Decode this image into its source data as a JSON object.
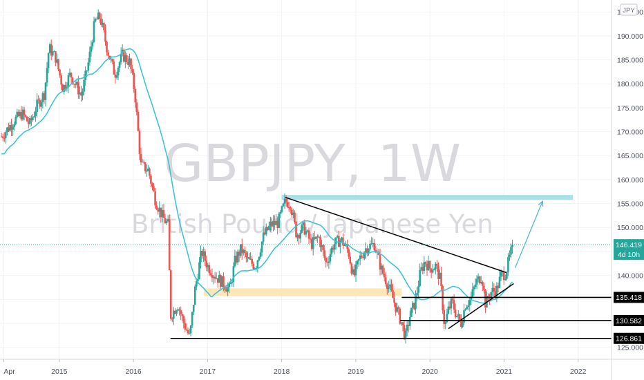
{
  "chart_data": {
    "type": "candlestick",
    "symbol": "GBPJPY",
    "interval": "1W",
    "watermark_title": "GBPJPY, 1W",
    "watermark_subtitle": "British Pound / Japanese Yen",
    "currency": "JPY",
    "ylim": [
      122.5,
      197.5
    ],
    "y_ticks": [
      125,
      130,
      135,
      140,
      145,
      150,
      155,
      160,
      165,
      170,
      175,
      180,
      185,
      190,
      195
    ],
    "x_tick_labels": [
      "Apr",
      "2015",
      "2016",
      "2017",
      "2018",
      "2019",
      "2020",
      "2021",
      "2022"
    ],
    "x_tick_years": [
      2014.25,
      2015.0,
      2016.0,
      2017.0,
      2018.0,
      2019.0,
      2020.0,
      2021.0,
      2022.0
    ],
    "x_range": [
      2014.2,
      2022.45
    ],
    "price_path": [
      [
        2014.22,
        169.0
      ],
      [
        2014.4,
        172.5
      ],
      [
        2014.5,
        173.8
      ],
      [
        2014.6,
        171.5
      ],
      [
        2014.7,
        175.5
      ],
      [
        2014.8,
        178.0
      ],
      [
        2014.86,
        187.5
      ],
      [
        2014.95,
        185.5
      ],
      [
        2015.05,
        179.0
      ],
      [
        2015.15,
        182.0
      ],
      [
        2015.3,
        177.5
      ],
      [
        2015.4,
        185.0
      ],
      [
        2015.48,
        193.0
      ],
      [
        2015.55,
        194.0
      ],
      [
        2015.65,
        187.0
      ],
      [
        2015.75,
        182.0
      ],
      [
        2015.85,
        186.0
      ],
      [
        2015.95,
        184.5
      ],
      [
        2016.02,
        178.0
      ],
      [
        2016.1,
        163.0
      ],
      [
        2016.2,
        162.0
      ],
      [
        2016.3,
        155.5
      ],
      [
        2016.4,
        152.0
      ],
      [
        2016.47,
        150.5
      ],
      [
        2016.5,
        131.5
      ],
      [
        2016.6,
        134.0
      ],
      [
        2016.68,
        130.0
      ],
      [
        2016.76,
        127.0
      ],
      [
        2016.83,
        137.0
      ],
      [
        2016.92,
        145.0
      ],
      [
        2017.0,
        142.0
      ],
      [
        2017.1,
        140.0
      ],
      [
        2017.2,
        138.5
      ],
      [
        2017.3,
        137.0
      ],
      [
        2017.37,
        143.0
      ],
      [
        2017.45,
        145.5
      ],
      [
        2017.55,
        143.0
      ],
      [
        2017.65,
        142.0
      ],
      [
        2017.75,
        148.0
      ],
      [
        2017.85,
        150.5
      ],
      [
        2017.95,
        151.0
      ],
      [
        2018.05,
        155.5
      ],
      [
        2018.12,
        155.0
      ],
      [
        2018.2,
        148.5
      ],
      [
        2018.3,
        150.0
      ],
      [
        2018.4,
        146.5
      ],
      [
        2018.5,
        148.0
      ],
      [
        2018.6,
        142.5
      ],
      [
        2018.7,
        146.5
      ],
      [
        2018.8,
        147.5
      ],
      [
        2018.9,
        145.0
      ],
      [
        2018.97,
        139.5
      ],
      [
        2019.05,
        143.5
      ],
      [
        2019.15,
        146.0
      ],
      [
        2019.25,
        146.5
      ],
      [
        2019.35,
        141.0
      ],
      [
        2019.45,
        137.5
      ],
      [
        2019.55,
        133.0
      ],
      [
        2019.62,
        130.0
      ],
      [
        2019.67,
        127.0
      ],
      [
        2019.73,
        131.5
      ],
      [
        2019.8,
        134.5
      ],
      [
        2019.87,
        140.5
      ],
      [
        2019.93,
        143.0
      ],
      [
        2020.0,
        141.5
      ],
      [
        2020.08,
        142.0
      ],
      [
        2020.14,
        139.0
      ],
      [
        2020.2,
        129.0
      ],
      [
        2020.24,
        132.5
      ],
      [
        2020.3,
        134.5
      ],
      [
        2020.35,
        132.0
      ],
      [
        2020.42,
        130.0
      ],
      [
        2020.48,
        134.0
      ],
      [
        2020.55,
        135.0
      ],
      [
        2020.62,
        138.5
      ],
      [
        2020.7,
        140.0
      ],
      [
        2020.75,
        134.0
      ],
      [
        2020.82,
        136.5
      ],
      [
        2020.9,
        137.0
      ],
      [
        2020.96,
        140.0
      ],
      [
        2021.02,
        140.5
      ],
      [
        2021.08,
        144.0
      ],
      [
        2021.12,
        146.42
      ]
    ],
    "candle_step": 0.0192,
    "candle_seed": 7,
    "up_color": "#26a69a",
    "down_color": "#ef5350",
    "moving_average_color": "#3ec3d6",
    "ma_period": 30,
    "zones": [
      {
        "from": 2016.95,
        "to": 2019.62,
        "low": 135.7,
        "high": 137.3,
        "color": "#fde7b8"
      },
      {
        "from": 2018.0,
        "to": 2021.93,
        "low": 155.8,
        "high": 156.8,
        "color": "#a8dfe8"
      }
    ],
    "trendlines": [
      {
        "x1": 2018.05,
        "y1": 156.3,
        "x2": 2021.03,
        "y2": 140.6
      },
      {
        "x1": 2020.25,
        "y1": 128.9,
        "x2": 2021.13,
        "y2": 138.3
      }
    ],
    "horizontal_lines": [
      135.418,
      130.582,
      126.861
    ],
    "horizontal_line_start": [
      2019.62,
      2019.6,
      2016.5
    ],
    "forecast_arrow": {
      "x1": 2021.15,
      "y1": 141.6,
      "x2": 2021.52,
      "y2": 155.5
    },
    "current_price": 146.419,
    "current_price_label": "146.419",
    "countdown": "4d 10h",
    "level_labels": [
      "135.418",
      "130.582",
      "126.861"
    ]
  }
}
